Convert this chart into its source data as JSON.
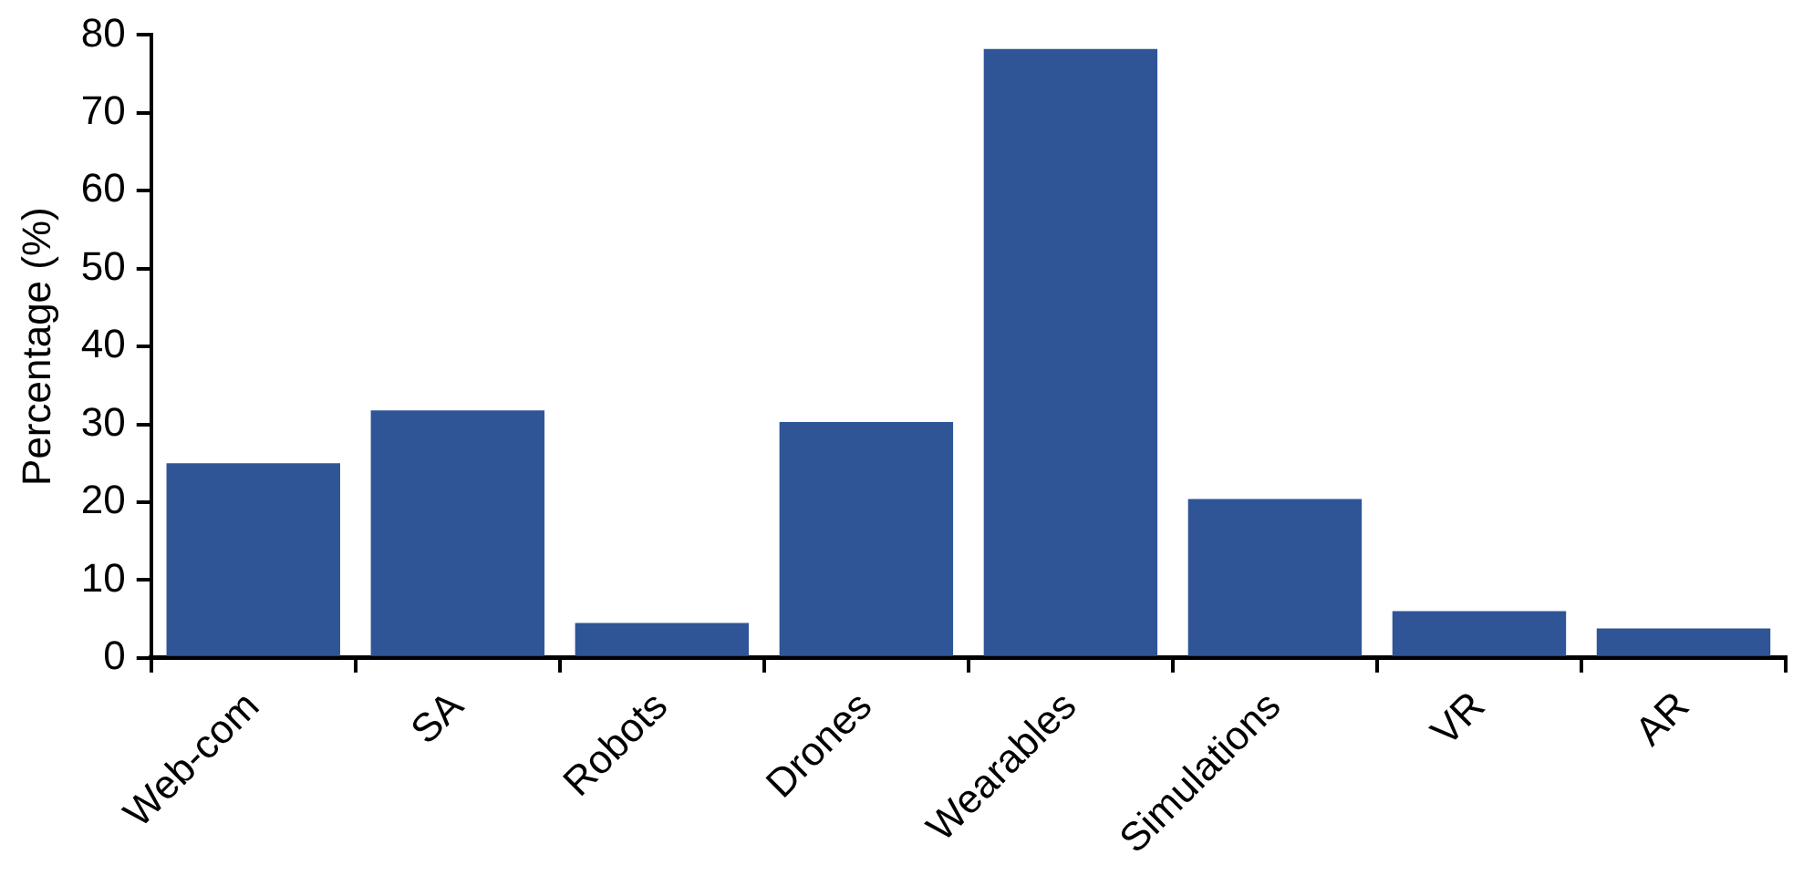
{
  "chart_data": {
    "type": "bar",
    "ylabel": "Percentage (%)",
    "categories": [
      "Web-com",
      "SA",
      "Robots",
      "Drones",
      "Wearables",
      "Simulations",
      "VR",
      "AR"
    ],
    "values": [
      25,
      31.8,
      4.5,
      30.3,
      78.2,
      20.4,
      6,
      3.8
    ],
    "color": "#2f5597",
    "ylim": [
      0,
      80
    ],
    "yticks": [
      0,
      10,
      20,
      30,
      40,
      50,
      60,
      70,
      80
    ],
    "grid": false,
    "legend": false
  }
}
